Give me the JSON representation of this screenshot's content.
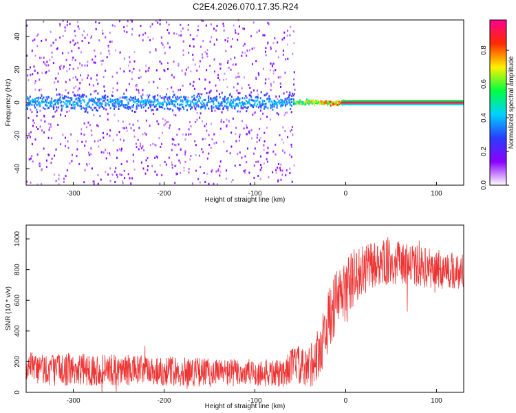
{
  "figure": {
    "title": "C2E4.2026.070.17.35.R24"
  },
  "chart_data": [
    {
      "type": "heatmap",
      "name": "spectrogram",
      "xlabel": "Height of straight line (km)",
      "ylabel": "Frequency (Hz)",
      "xlim": [
        -352,
        130
      ],
      "ylim": [
        -50,
        50
      ],
      "xticks": [
        -300,
        -200,
        -100,
        0,
        100
      ],
      "yticks": [
        -40,
        -20,
        0,
        20,
        40
      ],
      "grid": false,
      "description_regions": [
        {
          "x_range": [
            -352,
            -58
          ],
          "y_spread": 50,
          "level": "low",
          "note": "scattered low-amplitude noise across all frequencies"
        },
        {
          "x_range": [
            -352,
            -58
          ],
          "y_center": 0,
          "y_spread": 8,
          "level": "medium",
          "note": "stronger band near 0 Hz"
        },
        {
          "x_range": [
            -55,
            0
          ],
          "y_center": 0,
          "y_spread": 3,
          "level": "high"
        },
        {
          "x_range": [
            0,
            130
          ],
          "y_center": 0,
          "y_spread": 1,
          "level": "max",
          "note": "narrow line near 0 Hz"
        }
      ],
      "colorbar": {
        "label": "Normalized spectral amplitude",
        "range": [
          0.0,
          0.98
        ],
        "ticks": [
          "0.0",
          "0.2",
          "0.4",
          "0.6",
          "0.8"
        ],
        "stops": [
          "#ffffff",
          "#8a00ff",
          "#2a3cff",
          "#00d2ff",
          "#00ff40",
          "#fff000",
          "#ff2a00",
          "#ff0090"
        ]
      }
    },
    {
      "type": "line",
      "name": "snr",
      "xlabel": "Height of straight line (km)",
      "ylabel": "SNR (10 * v/v)",
      "xlim": [
        -352,
        130
      ],
      "ylim": [
        0,
        1090
      ],
      "xticks": [
        -300,
        -200,
        -100,
        0,
        100
      ],
      "yticks": [
        0,
        200,
        400,
        600,
        800,
        1000
      ],
      "color": "#ee3333",
      "trend": [
        {
          "x": -352,
          "y": 150
        },
        {
          "x": -300,
          "y": 150
        },
        {
          "x": -250,
          "y": 145
        },
        {
          "x": -200,
          "y": 140
        },
        {
          "x": -150,
          "y": 130
        },
        {
          "x": -100,
          "y": 125
        },
        {
          "x": -70,
          "y": 120
        },
        {
          "x": -55,
          "y": 200
        },
        {
          "x": -45,
          "y": 130
        },
        {
          "x": -30,
          "y": 250
        },
        {
          "x": -20,
          "y": 450
        },
        {
          "x": -10,
          "y": 600
        },
        {
          "x": 0,
          "y": 650
        },
        {
          "x": 10,
          "y": 760
        },
        {
          "x": 30,
          "y": 830
        },
        {
          "x": 50,
          "y": 850
        },
        {
          "x": 70,
          "y": 830
        },
        {
          "x": 100,
          "y": 800
        },
        {
          "x": 130,
          "y": 790
        }
      ],
      "spread": [
        {
          "x": -352,
          "y": 110
        },
        {
          "x": -70,
          "y": 90
        },
        {
          "x": -40,
          "y": 150
        },
        {
          "x": -20,
          "y": 200
        },
        {
          "x": 0,
          "y": 220
        },
        {
          "x": 20,
          "y": 160
        },
        {
          "x": 130,
          "y": 120
        }
      ]
    }
  ]
}
